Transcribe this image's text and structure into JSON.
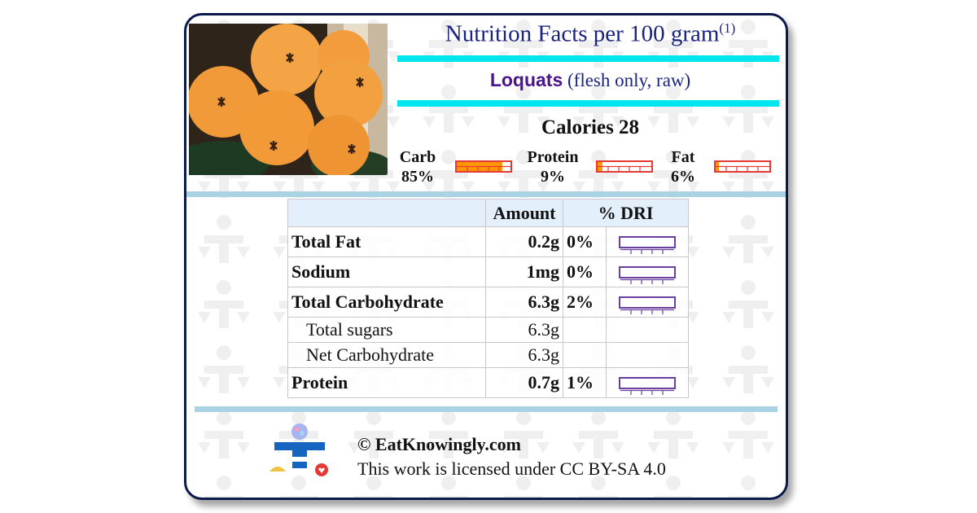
{
  "header": {
    "title": "Nutrition Facts per 100 gram",
    "footnote_mark": "(1)",
    "food_name": "Loquats",
    "food_desc": "(flesh only, raw)",
    "calories": "Calories 28"
  },
  "macros": [
    {
      "label": "Carb",
      "percent": "85%",
      "fraction": 0.85
    },
    {
      "label": "Protein",
      "percent": "9%",
      "fraction": 0.09
    },
    {
      "label": "Fat",
      "percent": "6%",
      "fraction": 0.06
    }
  ],
  "table": {
    "headers": [
      "",
      "Amount",
      "% DRI"
    ],
    "rows": [
      {
        "label": "Total Fat",
        "amount": "0.2g",
        "dri": "0%",
        "sub": false
      },
      {
        "label": "Sodium",
        "amount": "1mg",
        "dri": "0%",
        "sub": false
      },
      {
        "label": "Total Carbohydrate",
        "amount": "6.3g",
        "dri": "2%",
        "sub": false
      },
      {
        "label": "Total sugars",
        "amount": "6.3g",
        "dri": "",
        "sub": true
      },
      {
        "label": "Net Carbohydrate",
        "amount": "6.3g",
        "dri": "",
        "sub": true
      },
      {
        "label": "Protein",
        "amount": "0.7g",
        "dri": "1%",
        "sub": false
      }
    ]
  },
  "footer": {
    "copyright": "© EatKnowingly.com",
    "license": "This work is licensed under CC BY-SA 4.0"
  },
  "colors": {
    "border": "#0b1a4a",
    "cyan_rule": "#00e5ee",
    "separator": "#a9d3e3",
    "macro_fill": "#ff9800",
    "macro_border": "#e53935",
    "dri_border": "#6a3fa0"
  },
  "icons": [
    "loquat-fruit-photo",
    "eatknowingly-logo-icon"
  ]
}
